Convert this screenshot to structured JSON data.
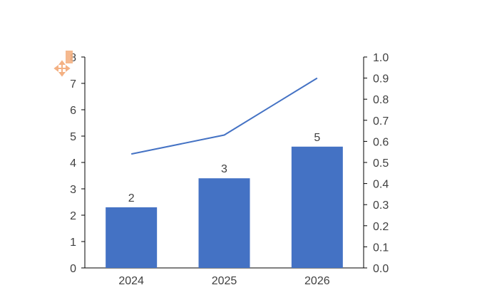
{
  "chart_data": {
    "type": "bar",
    "categories": [
      "2024",
      "2025",
      "2026"
    ],
    "series": [
      {
        "type": "bar",
        "axis": "left",
        "color": "#4472C4",
        "values": [
          2.3,
          3.4,
          4.6
        ],
        "data_labels": [
          "2",
          "3",
          "5"
        ]
      },
      {
        "type": "line",
        "axis": "right",
        "color": "#4472C4",
        "values": [
          0.54,
          0.63,
          0.9
        ]
      }
    ],
    "y_left": {
      "min": 0,
      "max": 8,
      "ticks": [
        "0",
        "1",
        "2",
        "3",
        "4",
        "5",
        "6",
        "7",
        "8"
      ]
    },
    "y_right": {
      "min": 0,
      "max": 1,
      "ticks": [
        "0.0",
        "0.1",
        "0.2",
        "0.3",
        "0.4",
        "0.5",
        "0.6",
        "0.7",
        "0.8",
        "0.9",
        "1.0"
      ]
    },
    "grid": false,
    "legend": "none"
  },
  "overlay": {
    "handle_icon": "move-handle-icon",
    "handle_color": "#F4B183"
  }
}
